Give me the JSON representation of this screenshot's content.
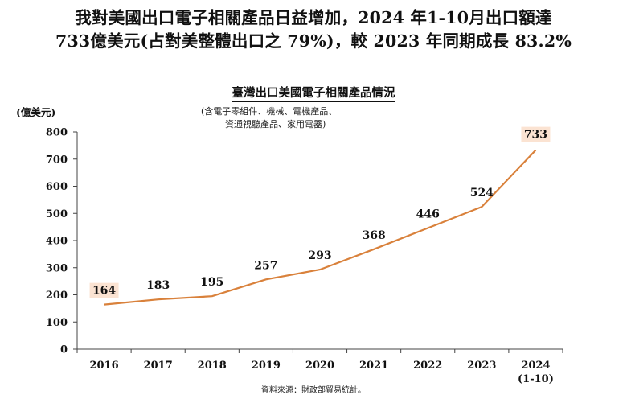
{
  "headline": {
    "line1": "我對美國出口電子相關產品日益增加，2024 年1-10月出口額達",
    "line2": "733億美元(占對美整體出口之 79%)，較 2023 年同期成長 83.2%"
  },
  "colors": {
    "line": "#d9813b",
    "label_box": "#fbe3d2",
    "axis": "#444444",
    "text": "#111111"
  },
  "chart_data": {
    "type": "line",
    "title": "臺灣出口美國電子相關產品情況",
    "note_lines": [
      "(含電子零組件、機械、電機產品、",
      "資通視聽產品、家用電器)"
    ],
    "ylabel": "(億美元)",
    "xlabel": "",
    "categories": [
      "2016",
      "2017",
      "2018",
      "2019",
      "2020",
      "2021",
      "2022",
      "2023",
      "2024"
    ],
    "category_sublabels": [
      "",
      "",
      "",
      "",
      "",
      "",
      "",
      "",
      "(1-10)"
    ],
    "series": [
      {
        "values": [
          164,
          183,
          195,
          257,
          293,
          368,
          446,
          524,
          733
        ]
      }
    ],
    "highlighted_labels": [
      "2016",
      "2024"
    ],
    "ylim": [
      0,
      800
    ],
    "yticks": [
      0,
      100,
      200,
      300,
      400,
      500,
      600,
      700,
      800
    ],
    "grid": false,
    "legend": "none"
  },
  "source": "資料來源：財政部貿易統計。"
}
